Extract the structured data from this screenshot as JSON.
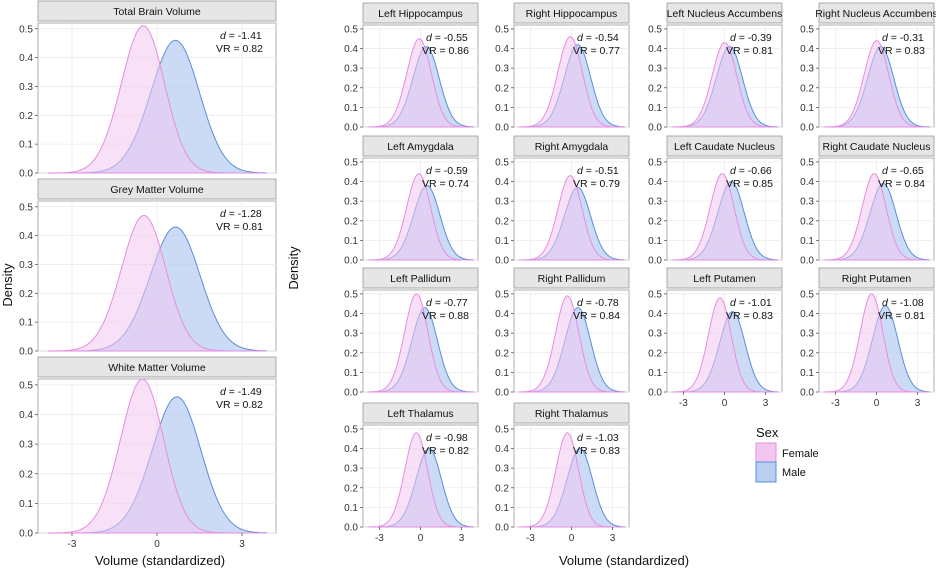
{
  "colors": {
    "female_fill": "#f3c6f0",
    "female_line": "#e68ee0",
    "male_fill": "#b9cff2",
    "male_line": "#5a8fd8",
    "overlap_fill": "#bbb2ee",
    "strip_bg": "#e6e6e6",
    "grid": "#ebebeb"
  },
  "left_group": {
    "ylabel": "Density",
    "xlabel": "Volume (standardized)",
    "x_ticks": [
      "-3",
      "0",
      "3"
    ],
    "y_ticks": [
      "0.0",
      "0.1",
      "0.2",
      "0.3",
      "0.4",
      "0.5"
    ]
  },
  "right_group": {
    "ylabel": "Density",
    "xlabel": "Volume (standardized)",
    "x_ticks": [
      "-3",
      "0",
      "3"
    ],
    "y_ticks": [
      "0.0",
      "0.1",
      "0.2",
      "0.3",
      "0.4",
      "0.5"
    ]
  },
  "legend": {
    "title": "Sex",
    "items": [
      {
        "label": "Female",
        "key": "female"
      },
      {
        "label": "Male",
        "key": "male"
      }
    ]
  },
  "chart_data": {
    "type": "area",
    "series_names": [
      "Female",
      "Male"
    ],
    "xlim": [
      -4.2,
      4.2
    ],
    "ylim": [
      0,
      0.52
    ],
    "panels": [
      {
        "id": "total-brain-volume",
        "title": "Total Brain Volume",
        "d": "-1.41",
        "vr": "0.82",
        "female_mean": -0.62,
        "female_sd": 0.78,
        "male_mean": 0.5,
        "male_sd": 0.88,
        "female_peak": 0.51,
        "male_peak": 0.46
      },
      {
        "id": "grey-matter-volume",
        "title": "Grey Matter Volume",
        "d": "-1.28",
        "vr": "0.81",
        "female_mean": -0.6,
        "female_sd": 0.8,
        "male_mean": 0.5,
        "male_sd": 0.9,
        "female_peak": 0.47,
        "male_peak": 0.43
      },
      {
        "id": "white-matter-volume",
        "title": "White Matter Volume",
        "d": "-1.49",
        "vr": "0.82",
        "female_mean": -0.65,
        "female_sd": 0.78,
        "male_mean": 0.55,
        "male_sd": 0.88,
        "female_peak": 0.52,
        "male_peak": 0.46
      },
      {
        "id": "left-hippocampus",
        "title": "Left Hippocampus",
        "d": "-0.55",
        "vr": "0.86",
        "female_mean": -0.25,
        "female_sd": 0.92,
        "male_mean": 0.25,
        "male_sd": 0.98,
        "female_peak": 0.45,
        "male_peak": 0.41
      },
      {
        "id": "right-hippocampus",
        "title": "Right Hippocampus",
        "d": "-0.54",
        "vr": "0.77",
        "female_mean": -0.25,
        "female_sd": 0.92,
        "male_mean": 0.28,
        "male_sd": 0.98,
        "female_peak": 0.46,
        "male_peak": 0.42
      },
      {
        "id": "left-nucleus-accumbens",
        "title": "Left Nucleus Accumbens",
        "d": "-0.39",
        "vr": "0.81",
        "female_mean": -0.15,
        "female_sd": 0.92,
        "male_mean": 0.2,
        "male_sd": 0.98,
        "female_peak": 0.43,
        "male_peak": 0.41
      },
      {
        "id": "right-nucleus-accumbens",
        "title": "Right Nucleus Accumbens",
        "d": "-0.31",
        "vr": "0.83",
        "female_mean": -0.15,
        "female_sd": 0.92,
        "male_mean": 0.15,
        "male_sd": 0.98,
        "female_peak": 0.44,
        "male_peak": 0.41
      },
      {
        "id": "left-amygdala",
        "title": "Left Amygdala",
        "d": "-0.59",
        "vr": "0.74",
        "female_mean": -0.28,
        "female_sd": 0.9,
        "male_mean": 0.3,
        "male_sd": 0.98,
        "female_peak": 0.44,
        "male_peak": 0.38
      },
      {
        "id": "right-amygdala",
        "title": "Right Amygdala",
        "d": "-0.51",
        "vr": "0.79",
        "female_mean": -0.25,
        "female_sd": 0.9,
        "male_mean": 0.28,
        "male_sd": 0.98,
        "female_peak": 0.43,
        "male_peak": 0.37
      },
      {
        "id": "left-caudate-nucleus",
        "title": "Left Caudate Nucleus",
        "d": "-0.66",
        "vr": "0.85",
        "female_mean": -0.32,
        "female_sd": 0.9,
        "male_mean": 0.32,
        "male_sd": 0.98,
        "female_peak": 0.44,
        "male_peak": 0.4
      },
      {
        "id": "right-caudate-nucleus",
        "title": "Right Caudate Nucleus",
        "d": "-0.65",
        "vr": "0.84",
        "female_mean": -0.32,
        "female_sd": 0.9,
        "male_mean": 0.32,
        "male_sd": 0.98,
        "female_peak": 0.44,
        "male_peak": 0.39
      },
      {
        "id": "left-pallidum",
        "title": "Left Pallidum",
        "d": "-0.77",
        "vr": "0.88",
        "female_mean": -0.45,
        "female_sd": 0.88,
        "male_mean": 0.15,
        "male_sd": 0.96,
        "female_peak": 0.5,
        "male_peak": 0.43
      },
      {
        "id": "right-pallidum",
        "title": "Right Pallidum",
        "d": "-0.78",
        "vr": "0.84",
        "female_mean": -0.45,
        "female_sd": 0.88,
        "male_mean": 0.3,
        "male_sd": 0.96,
        "female_peak": 0.49,
        "male_peak": 0.43
      },
      {
        "id": "left-putamen",
        "title": "Left Putamen",
        "d": "-1.01",
        "vr": "0.83",
        "female_mean": -0.48,
        "female_sd": 0.85,
        "male_mean": 0.42,
        "male_sd": 0.95,
        "female_peak": 0.48,
        "male_peak": 0.41
      },
      {
        "id": "right-putamen",
        "title": "Right Putamen",
        "d": "-1.08",
        "vr": "0.81",
        "female_mean": -0.5,
        "female_sd": 0.85,
        "male_mean": 0.48,
        "male_sd": 0.95,
        "female_peak": 0.5,
        "male_peak": 0.44
      },
      {
        "id": "left-thalamus",
        "title": "Left Thalamus",
        "d": "-0.98",
        "vr": "0.82",
        "female_mean": -0.45,
        "female_sd": 0.85,
        "male_mean": 0.45,
        "male_sd": 0.95,
        "female_peak": 0.48,
        "male_peak": 0.4
      },
      {
        "id": "right-thalamus",
        "title": "Right Thalamus",
        "d": "-1.03",
        "vr": "0.83",
        "female_mean": -0.45,
        "female_sd": 0.85,
        "male_mean": 0.45,
        "male_sd": 0.95,
        "female_peak": 0.48,
        "male_peak": 0.4
      }
    ]
  }
}
